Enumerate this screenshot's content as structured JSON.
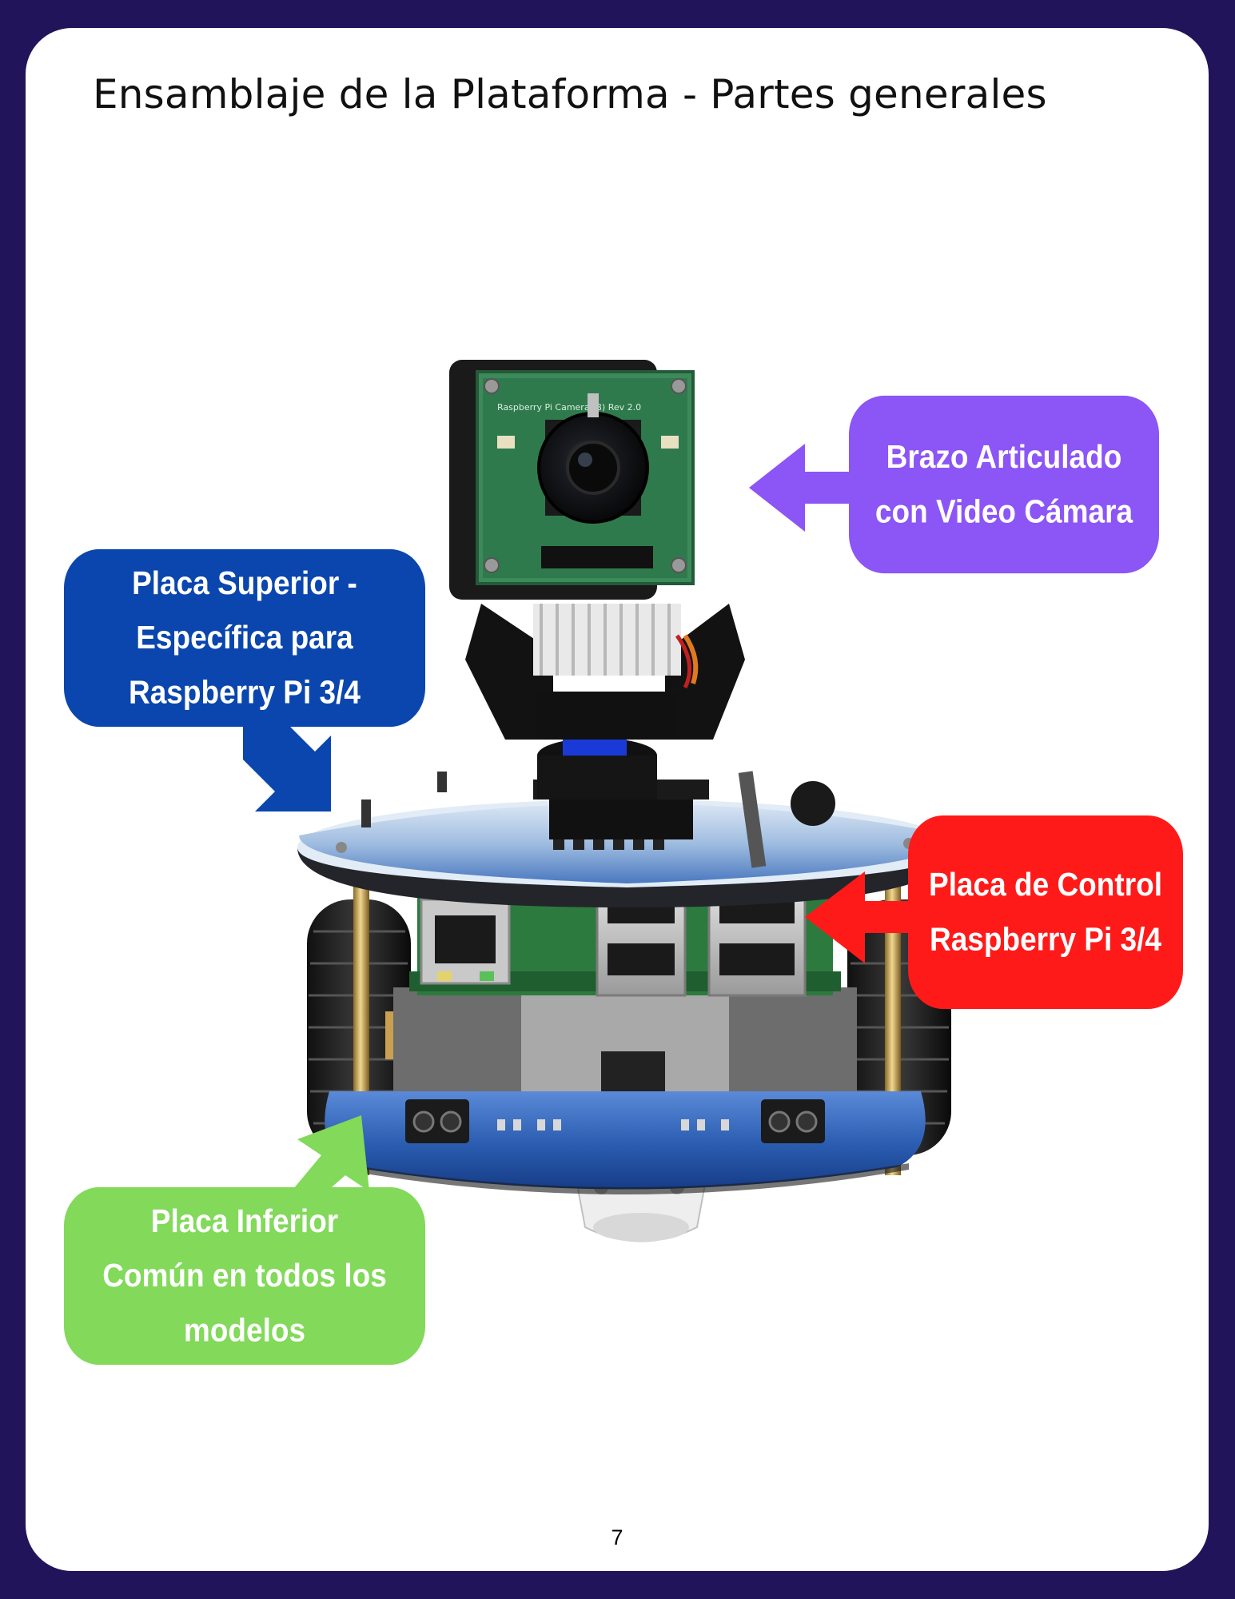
{
  "page": {
    "title": "Ensamblaje de la Plataforma - Partes generales",
    "page_number": "7"
  },
  "photo": {
    "camera_board_text": "Raspberry Pi Camera (B) Rev 2.0"
  },
  "callouts": {
    "camera": {
      "line1": "Brazo Articulado",
      "line2": "con Video Cámara",
      "color": "#8c55f6"
    },
    "upper_board": {
      "line1": "Placa Superior -",
      "line2": "Específica para",
      "line3": "Raspberry Pi 3/4",
      "color": "#0a46ad"
    },
    "control_board": {
      "line1": "Placa de Control",
      "line2": "Raspberry Pi 3/4",
      "color": "#ff1a1a"
    },
    "lower_board": {
      "line1": "Placa Inferior",
      "line2": "Común en todos los",
      "line3": "modelos",
      "color": "#82d95a"
    }
  },
  "colors": {
    "frame": "#22145a",
    "page": "#ffffff"
  }
}
